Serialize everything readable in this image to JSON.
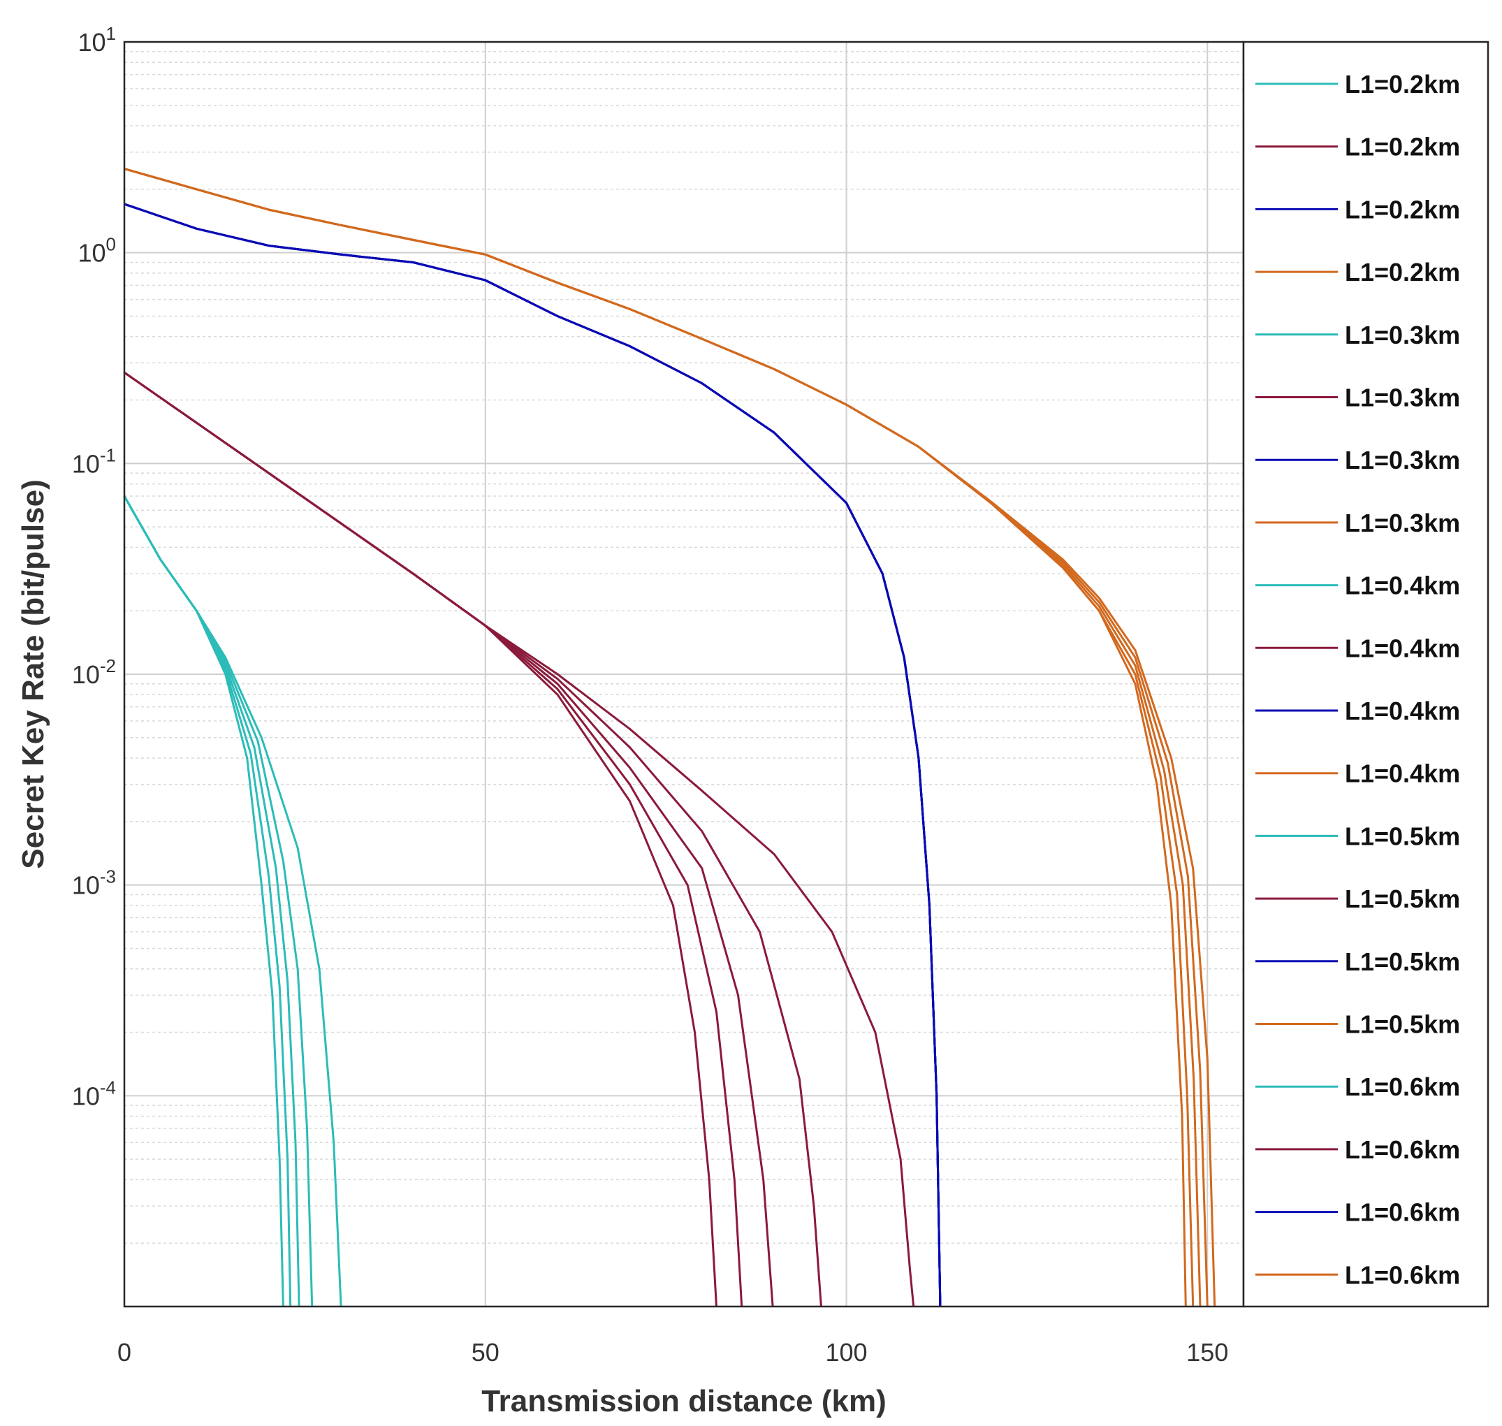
{
  "chart_data": {
    "type": "line",
    "title": "",
    "xlabel": "Transmission distance (km)",
    "ylabel": "Secret Key Rate (bit/pulse)",
    "xscale": "linear",
    "yscale": "log",
    "xlim": [
      0,
      155
    ],
    "ylim": [
      1e-05,
      10
    ],
    "xticks": [
      0,
      50,
      100,
      150
    ],
    "xtick_labels": [
      "0",
      "50",
      "100",
      "150"
    ],
    "yticks": [
      0.0001,
      0.001,
      0.01,
      0.1,
      1,
      10
    ],
    "ytick_labels": [
      {
        "base": "10",
        "exp": "-4"
      },
      {
        "base": "10",
        "exp": "-3"
      },
      {
        "base": "10",
        "exp": "-2"
      },
      {
        "base": "10",
        "exp": "-1"
      },
      {
        "base": "10",
        "exp": "0"
      },
      {
        "base": "10",
        "exp": "1"
      }
    ],
    "grid": true,
    "legend_position": "right-outside",
    "colors": {
      "cyan": "#2bbcb8",
      "maroon": "#8b1a3a",
      "blue": "#0a0ab4",
      "orange": "#d2691e"
    },
    "series": [
      {
        "name": "L1=0.2km",
        "color": "cyan",
        "x": [
          0,
          5,
          10,
          14,
          17,
          19,
          20.5,
          21.5,
          22
        ],
        "y": [
          0.07,
          0.035,
          0.02,
          0.01,
          0.004,
          0.001,
          0.0003,
          5e-05,
          1e-05
        ]
      },
      {
        "name": "L1=0.2km",
        "color": "maroon",
        "x": [
          0,
          20,
          40,
          50,
          60,
          70,
          76,
          79,
          81,
          82
        ],
        "y": [
          0.27,
          0.09,
          0.03,
          0.017,
          0.008,
          0.0025,
          0.0008,
          0.0002,
          4e-05,
          1e-05
        ]
      },
      {
        "name": "L1=0.2km",
        "color": "blue",
        "x": [
          0,
          10,
          20,
          30,
          40,
          50,
          60,
          70,
          80,
          90,
          100,
          105,
          108,
          110,
          111.5,
          112.5,
          113
        ],
        "y": [
          1.7,
          1.3,
          1.08,
          0.98,
          0.9,
          0.74,
          0.5,
          0.36,
          0.24,
          0.14,
          0.065,
          0.03,
          0.012,
          0.004,
          0.0008,
          0.0001,
          1e-05
        ]
      },
      {
        "name": "L1=0.2km",
        "color": "orange",
        "x": [
          0,
          10,
          20,
          30,
          40,
          50,
          60,
          70,
          80,
          90,
          100,
          110,
          120,
          130,
          135,
          140,
          143,
          145,
          146.5,
          147
        ],
        "y": [
          2.5,
          2.0,
          1.6,
          1.35,
          1.15,
          0.98,
          0.72,
          0.54,
          0.39,
          0.28,
          0.19,
          0.12,
          0.065,
          0.032,
          0.02,
          0.009,
          0.003,
          0.0008,
          8e-05,
          1e-05
        ]
      },
      {
        "name": "L1=0.3km",
        "color": "cyan",
        "x": [
          0,
          5,
          10,
          14,
          17.5,
          20,
          21.5,
          22.6,
          23
        ],
        "y": [
          0.07,
          0.035,
          0.02,
          0.0105,
          0.0042,
          0.0011,
          0.00033,
          5e-05,
          1e-05
        ]
      },
      {
        "name": "L1=0.3km",
        "color": "maroon",
        "x": [
          0,
          20,
          40,
          50,
          60,
          70,
          78,
          82,
          84.5,
          85.5
        ],
        "y": [
          0.27,
          0.09,
          0.03,
          0.017,
          0.0085,
          0.003,
          0.001,
          0.00025,
          4e-05,
          1e-05
        ]
      },
      {
        "name": "L1=0.3km",
        "color": "blue",
        "x": [
          0,
          10,
          20,
          30,
          40,
          50,
          60,
          70,
          80,
          90,
          100,
          105,
          108,
          110,
          111.5,
          112.5,
          113
        ],
        "y": [
          1.7,
          1.3,
          1.08,
          0.98,
          0.9,
          0.74,
          0.5,
          0.36,
          0.24,
          0.14,
          0.065,
          0.03,
          0.012,
          0.004,
          0.0008,
          0.0001,
          1e-05
        ]
      },
      {
        "name": "L1=0.3km",
        "color": "orange",
        "x": [
          0,
          10,
          20,
          30,
          40,
          50,
          60,
          70,
          80,
          90,
          100,
          110,
          120,
          130,
          135,
          140,
          143.5,
          145.8,
          147.2,
          148
        ],
        "y": [
          2.5,
          2.0,
          1.6,
          1.35,
          1.15,
          0.98,
          0.72,
          0.54,
          0.39,
          0.28,
          0.19,
          0.12,
          0.065,
          0.032,
          0.02,
          0.01,
          0.0033,
          0.0009,
          0.0001,
          1e-05
        ]
      },
      {
        "name": "L1=0.4km",
        "color": "cyan",
        "x": [
          0,
          5,
          10,
          14,
          18,
          21,
          22.6,
          23.7,
          24.2
        ],
        "y": [
          0.07,
          0.035,
          0.02,
          0.011,
          0.0045,
          0.0012,
          0.00035,
          6e-05,
          1e-05
        ]
      },
      {
        "name": "L1=0.4km",
        "color": "maroon",
        "x": [
          0,
          20,
          40,
          50,
          60,
          70,
          80,
          85,
          88.5,
          89.8
        ],
        "y": [
          0.27,
          0.09,
          0.03,
          0.017,
          0.009,
          0.0036,
          0.0012,
          0.0003,
          4e-05,
          1e-05
        ]
      },
      {
        "name": "L1=0.4km",
        "color": "blue",
        "x": [
          0,
          10,
          20,
          30,
          40,
          50,
          60,
          70,
          80,
          90,
          100,
          105,
          108,
          110,
          111.5,
          112.5,
          113
        ],
        "y": [
          1.7,
          1.3,
          1.08,
          0.98,
          0.9,
          0.74,
          0.5,
          0.36,
          0.24,
          0.14,
          0.065,
          0.03,
          0.012,
          0.004,
          0.0008,
          0.0001,
          1e-05
        ]
      },
      {
        "name": "L1=0.4km",
        "color": "orange",
        "x": [
          0,
          10,
          20,
          30,
          40,
          50,
          60,
          70,
          80,
          90,
          100,
          110,
          120,
          130,
          135,
          140,
          144,
          146.6,
          148.1,
          149
        ],
        "y": [
          2.5,
          2.0,
          1.6,
          1.35,
          1.15,
          0.98,
          0.72,
          0.54,
          0.39,
          0.28,
          0.19,
          0.12,
          0.065,
          0.033,
          0.021,
          0.011,
          0.0035,
          0.001,
          0.00012,
          1e-05
        ]
      },
      {
        "name": "L1=0.5km",
        "color": "cyan",
        "x": [
          0,
          5,
          10,
          14,
          18.5,
          22,
          24,
          25.3,
          26
        ],
        "y": [
          0.07,
          0.035,
          0.02,
          0.0115,
          0.0048,
          0.0013,
          0.0004,
          7e-05,
          1e-05
        ]
      },
      {
        "name": "L1=0.5km",
        "color": "maroon",
        "x": [
          0,
          20,
          40,
          50,
          60,
          70,
          80,
          88,
          93.5,
          95.5,
          96.5
        ],
        "y": [
          0.27,
          0.09,
          0.03,
          0.017,
          0.0095,
          0.0045,
          0.0018,
          0.0006,
          0.00012,
          3e-05,
          1e-05
        ]
      },
      {
        "name": "L1=0.5km",
        "color": "blue",
        "x": [
          0,
          10,
          20,
          30,
          40,
          50,
          60,
          70,
          80,
          90,
          100,
          105,
          108,
          110,
          111.5,
          112.5,
          113
        ],
        "y": [
          1.7,
          1.3,
          1.08,
          0.98,
          0.9,
          0.74,
          0.5,
          0.36,
          0.24,
          0.14,
          0.065,
          0.03,
          0.012,
          0.004,
          0.0008,
          0.0001,
          1e-05
        ]
      },
      {
        "name": "L1=0.5km",
        "color": "orange",
        "x": [
          0,
          10,
          20,
          30,
          40,
          50,
          60,
          70,
          80,
          90,
          100,
          110,
          120,
          130,
          135,
          140,
          144.5,
          147.3,
          149,
          150
        ],
        "y": [
          2.5,
          2.0,
          1.6,
          1.35,
          1.15,
          0.98,
          0.72,
          0.54,
          0.39,
          0.28,
          0.19,
          0.12,
          0.065,
          0.034,
          0.022,
          0.012,
          0.0038,
          0.0011,
          0.00013,
          1e-05
        ]
      },
      {
        "name": "L1=0.6km",
        "color": "cyan",
        "x": [
          0,
          5,
          10,
          14,
          19,
          24,
          27,
          29,
          30
        ],
        "y": [
          0.07,
          0.035,
          0.02,
          0.012,
          0.005,
          0.0015,
          0.0004,
          6e-05,
          1e-05
        ]
      },
      {
        "name": "L1=0.6km",
        "color": "maroon",
        "x": [
          0,
          20,
          40,
          50,
          60,
          70,
          80,
          90,
          98,
          104,
          107.5,
          108.8,
          109.3
        ],
        "y": [
          0.27,
          0.09,
          0.03,
          0.017,
          0.01,
          0.0055,
          0.0028,
          0.0014,
          0.0006,
          0.0002,
          5e-05,
          1.5e-05,
          1e-05
        ]
      },
      {
        "name": "L1=0.6km",
        "color": "blue",
        "x": [
          0,
          10,
          20,
          30,
          40,
          50,
          60,
          70,
          80,
          90,
          100,
          105,
          108,
          110,
          111.5,
          112.5,
          113
        ],
        "y": [
          1.7,
          1.3,
          1.08,
          0.98,
          0.9,
          0.74,
          0.5,
          0.36,
          0.24,
          0.14,
          0.065,
          0.03,
          0.012,
          0.004,
          0.0008,
          0.0001,
          1e-05
        ]
      },
      {
        "name": "L1=0.6km",
        "color": "orange",
        "x": [
          0,
          10,
          20,
          30,
          40,
          50,
          60,
          70,
          80,
          90,
          100,
          110,
          120,
          130,
          135,
          140,
          145,
          148,
          150,
          151
        ],
        "y": [
          2.5,
          2.0,
          1.6,
          1.35,
          1.15,
          0.98,
          0.72,
          0.54,
          0.39,
          0.28,
          0.19,
          0.12,
          0.066,
          0.035,
          0.023,
          0.013,
          0.004,
          0.0012,
          0.00015,
          1e-05
        ]
      }
    ]
  }
}
